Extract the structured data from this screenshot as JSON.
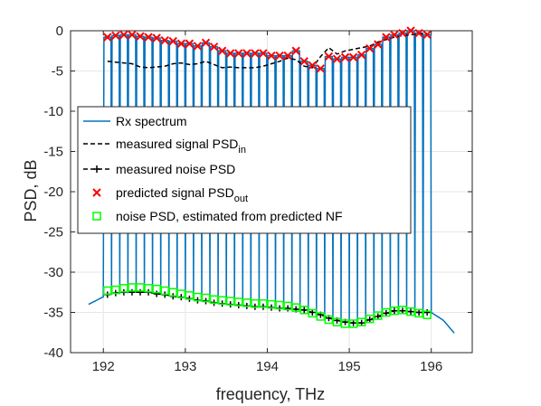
{
  "chart_data": {
    "type": "line",
    "xlabel": "frequency, THz",
    "ylabel": "PSD, dB",
    "xlim": [
      191.6,
      196.5
    ],
    "ylim": [
      -40,
      0
    ],
    "xticks": [
      192,
      193,
      194,
      195,
      196
    ],
    "yticks": [
      0,
      -5,
      -10,
      -15,
      -20,
      -25,
      -30,
      -35,
      -40
    ],
    "grid": true,
    "legend_position": "center-left",
    "colors": {
      "rx_spectrum": "#0072BD",
      "signal_in": "#000000",
      "noise": "#000000",
      "predicted_signal": "#FF0000",
      "noise_nf": "#00FF00"
    },
    "legend": [
      {
        "label": "Rx spectrum",
        "sub": ""
      },
      {
        "label": "measured signal PSD",
        "sub": "in"
      },
      {
        "label": "measured noise PSD",
        "sub": ""
      },
      {
        "label": "predicted signal PSD",
        "sub": "out"
      },
      {
        "label": "noise PSD, estimated from predicted NF",
        "sub": ""
      }
    ],
    "channels": {
      "x": [
        192.05,
        192.15,
        192.25,
        192.35,
        192.45,
        192.55,
        192.65,
        192.75,
        192.85,
        192.95,
        193.05,
        193.15,
        193.25,
        193.35,
        193.45,
        193.55,
        193.65,
        193.75,
        193.85,
        193.95,
        194.05,
        194.15,
        194.25,
        194.35,
        194.45,
        194.55,
        194.65,
        194.75,
        194.85,
        194.95,
        195.05,
        195.15,
        195.25,
        195.35,
        195.45,
        195.55,
        195.65,
        195.75,
        195.85,
        195.95
      ],
      "predicted_signal": [
        -0.8,
        -0.6,
        -0.5,
        -0.5,
        -0.7,
        -0.8,
        -0.9,
        -1.2,
        -1.3,
        -1.6,
        -1.6,
        -1.9,
        -1.5,
        -2.0,
        -2.5,
        -2.8,
        -2.8,
        -2.8,
        -2.8,
        -2.8,
        -3.1,
        -3.1,
        -3.1,
        -2.5,
        -3.8,
        -4.3,
        -4.7,
        -3.2,
        -3.5,
        -3.3,
        -3.3,
        -3.0,
        -2.2,
        -1.7,
        -0.8,
        -0.5,
        -0.3,
        0.0,
        -0.3,
        -0.5
      ],
      "signal_in": [
        -3.8,
        -3.9,
        -4.0,
        -4.1,
        -4.5,
        -4.6,
        -4.5,
        -4.4,
        -4.1,
        -4.0,
        -4.2,
        -4.1,
        -3.8,
        -4.2,
        -4.6,
        -4.5,
        -4.6,
        -4.6,
        -4.6,
        -4.4,
        -4.1,
        -3.8,
        -3.4,
        -3.6,
        -4.4,
        -4.6,
        -3.2,
        -2.1,
        -2.9,
        -2.5,
        -2.3,
        -2.1,
        -1.9,
        -1.4,
        -1.1,
        -0.8,
        -0.6,
        -0.5,
        -0.4,
        -0.3
      ],
      "noise": [
        -32.8,
        -32.6,
        -32.5,
        -32.5,
        -32.5,
        -32.5,
        -32.7,
        -32.8,
        -33.0,
        -33.1,
        -33.3,
        -33.5,
        -33.6,
        -33.8,
        -33.9,
        -34.0,
        -34.1,
        -34.2,
        -34.3,
        -34.3,
        -34.4,
        -34.5,
        -34.5,
        -34.6,
        -34.7,
        -35.0,
        -35.3,
        -35.7,
        -36.0,
        -36.2,
        -36.3,
        -36.3,
        -35.9,
        -35.5,
        -35.1,
        -34.8,
        -34.8,
        -34.9,
        -35.0,
        -35.0
      ],
      "noise_nf": [
        -32.3,
        -32.2,
        -32.0,
        -31.9,
        -31.9,
        -32.0,
        -32.1,
        -32.3,
        -32.5,
        -32.7,
        -32.9,
        -33.1,
        -33.2,
        -33.4,
        -33.5,
        -33.6,
        -33.7,
        -33.8,
        -33.9,
        -33.9,
        -34.0,
        -34.1,
        -34.2,
        -34.4,
        -34.7,
        -35.1,
        -35.5,
        -35.9,
        -36.2,
        -36.4,
        -36.4,
        -36.2,
        -35.8,
        -35.4,
        -35.0,
        -34.8,
        -34.7,
        -34.9,
        -35.1,
        -35.3
      ]
    },
    "rx_spectrum_base": {
      "x": [
        191.82,
        192.05,
        192.5,
        193.0,
        193.5,
        194.0,
        194.5,
        194.8,
        195.0,
        195.2,
        195.5,
        195.8,
        196.0,
        196.15,
        196.3
      ],
      "y": [
        -34.0,
        -32.8,
        -32.4,
        -33.0,
        -33.7,
        -34.1,
        -34.6,
        -35.6,
        -36.1,
        -35.8,
        -34.9,
        -34.7,
        -35.0,
        -36.0,
        -37.8
      ]
    }
  }
}
